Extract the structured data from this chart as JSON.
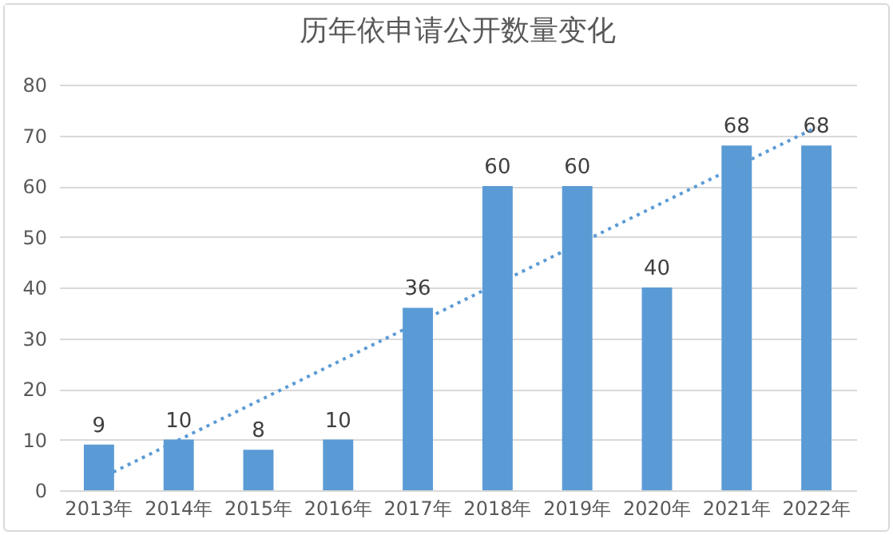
{
  "chart_data": {
    "type": "bar",
    "title": "历年依申请公开数量变化",
    "categories": [
      "2013年",
      "2014年",
      "2015年",
      "2016年",
      "2017年",
      "2018年",
      "2019年",
      "2020年",
      "2021年",
      "2022年"
    ],
    "series": [
      {
        "color": "#5b9bd5",
        "values": [
          9,
          10,
          8,
          10,
          36,
          60,
          60,
          40,
          68,
          68
        ],
        "value_labels": [
          "9",
          "10",
          "8",
          "10",
          "36",
          "60",
          "60",
          "40",
          "68",
          "68"
        ]
      },
      {
        "type": "line",
        "color": "#5b9bd5",
        "x": [
          "2013年",
          "2022年"
        ],
        "values": [
          2.2,
          71.6
        ],
        "line_style": "dotted",
        "marker": "none"
      }
    ],
    "ylim": [
      0,
      80
    ],
    "yticks": [
      0,
      10,
      20,
      30,
      40,
      50,
      60,
      70,
      80
    ],
    "grid": "y"
  }
}
